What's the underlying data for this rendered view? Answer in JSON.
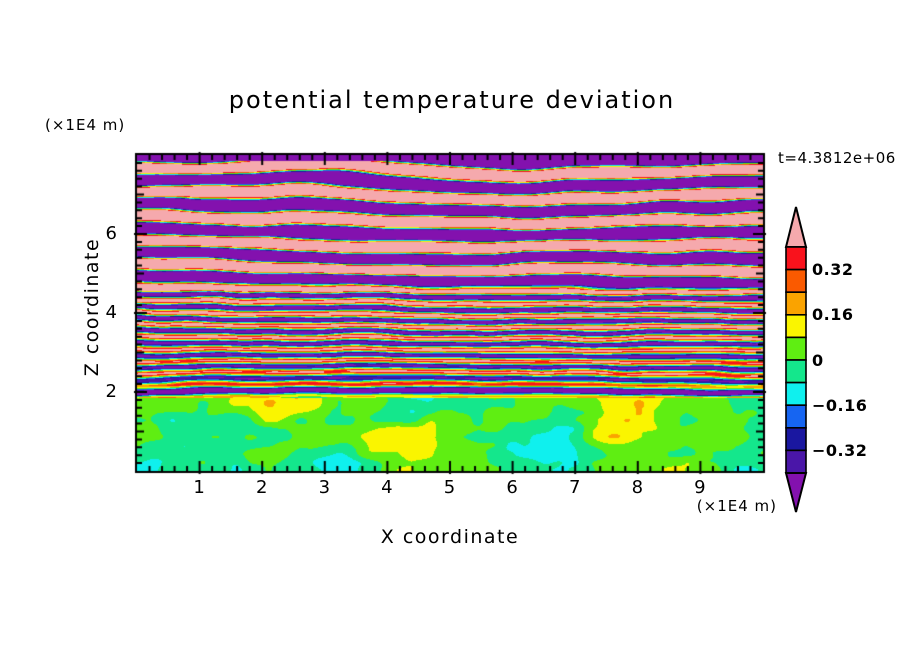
{
  "title": "potential temperature deviation",
  "timestamp": "t=4.3812e+06",
  "axes": {
    "x": {
      "label": "X coordinate",
      "unit": "(×1E4 m)",
      "min": 0,
      "max": 10,
      "major_ticks": [
        1,
        2,
        3,
        4,
        5,
        6,
        7,
        8,
        9
      ],
      "minor_step": 0.2
    },
    "z": {
      "label": "Z coordinate",
      "unit": "(×1E4 m)",
      "min": 0,
      "max": 8,
      "major_ticks": [
        2,
        4,
        6
      ],
      "minor_step": 0.2
    }
  },
  "colorbar": {
    "labels": [
      "0.32",
      "0.16",
      "0",
      "−0.16",
      "−0.32"
    ],
    "labeled_levels": [
      0.32,
      0.16,
      0,
      -0.16,
      -0.32
    ],
    "levels": [
      0.4,
      0.32,
      0.24,
      0.16,
      0.08,
      0,
      -0.08,
      -0.16,
      -0.24,
      -0.32,
      -0.4
    ],
    "palette": [
      "#F5A9AD",
      "#F9121C",
      "#FA5A00",
      "#FAA300",
      "#FAF500",
      "#5FEE12",
      "#14E78C",
      "#0FF0EE",
      "#1665F2",
      "#1A17A0",
      "#4A16A8",
      "#8311AE"
    ],
    "above_range_color": "#F5A9AD",
    "below_range_color": "#8311AE",
    "outline_color": "#000000"
  },
  "chart_data": {
    "type": "heatmap",
    "title": "potential temperature deviation",
    "time_annotation": "t=4.3812e+06",
    "xlabel": "X coordinate (×1E4 m)",
    "zlabel": "Z coordinate (×1E4 m)",
    "x_range": [
      0,
      10
    ],
    "z_range": [
      0,
      8
    ],
    "value_bin_width": 0.08,
    "value_saturation": 0.4,
    "description": "Filled-contour field of potential temperature deviation in an x–z atmospheric slice: weak green/chartreuse convective blobs below z≈2, a dark negative inversion stripe at z≈2, fine multicolour turbulent striations for 2<z<4.6, and broad saturated pink/purple gravity-wave bands above z≈4.6 topped by a solid purple band at z≈8.",
    "field": {
      "seed": 7.31,
      "zones": [
        {
          "name": "surface-convection",
          "z": [
            0,
            1.85
          ],
          "type": "blobs",
          "amplitude": 0.09
        },
        {
          "name": "inversion-layer",
          "z": [
            1.85,
            2.15
          ],
          "type": "layer",
          "bias": -0.3
        },
        {
          "name": "turbulent-core",
          "z": [
            2.15,
            4.6
          ],
          "type": "waves",
          "amplitude": 0.5,
          "wavelength_z": 0.3
        },
        {
          "name": "stratified-waves",
          "z": [
            4.6,
            7.86
          ],
          "type": "waves",
          "amplitude": 1.15,
          "wavelength_z": 0.62
        },
        {
          "name": "top-band",
          "z": [
            7.86,
            8
          ],
          "type": "solid",
          "value": -0.45
        }
      ]
    }
  }
}
